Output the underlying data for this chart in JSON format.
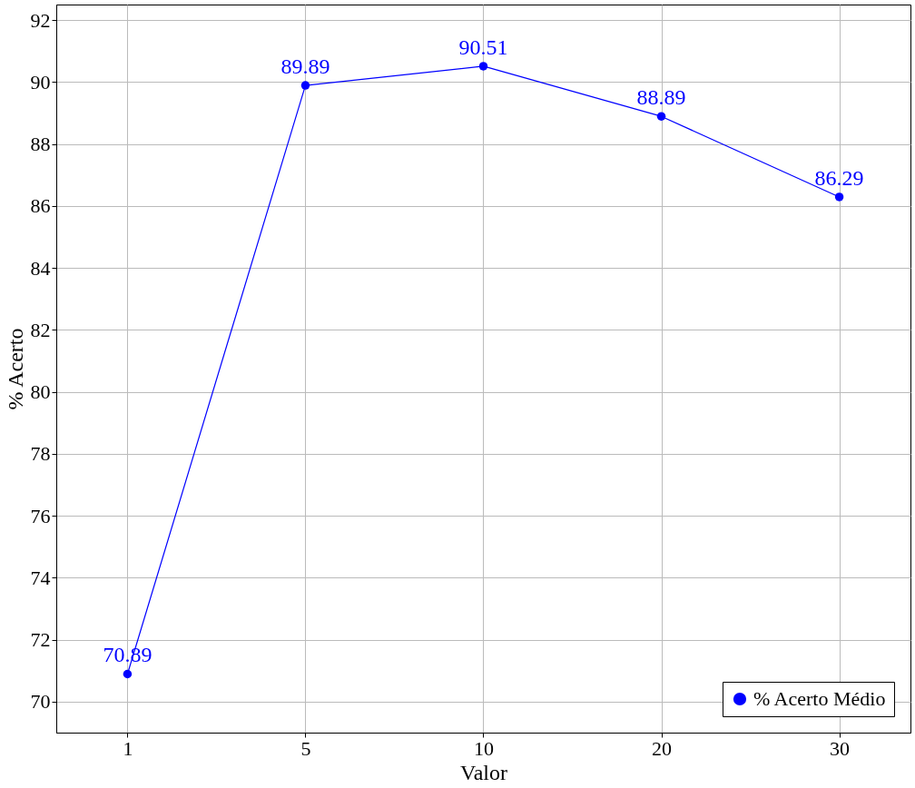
{
  "chart_data": {
    "type": "line",
    "xlabel": "Valor",
    "ylabel": "% Acerto",
    "categories": [
      "1",
      "5",
      "10",
      "20",
      "30"
    ],
    "series": [
      {
        "name": "% Acerto Médio",
        "color": "#0000ff",
        "values": [
          70.89,
          89.89,
          90.51,
          88.89,
          86.29
        ]
      }
    ],
    "ylim": [
      69,
      92.5
    ],
    "yticks": [
      70,
      72,
      74,
      76,
      78,
      80,
      82,
      84,
      86,
      88,
      90,
      92
    ],
    "grid": true,
    "legend": "bottom right",
    "marker": "circle",
    "line_style": "solid",
    "data_labels": true
  }
}
